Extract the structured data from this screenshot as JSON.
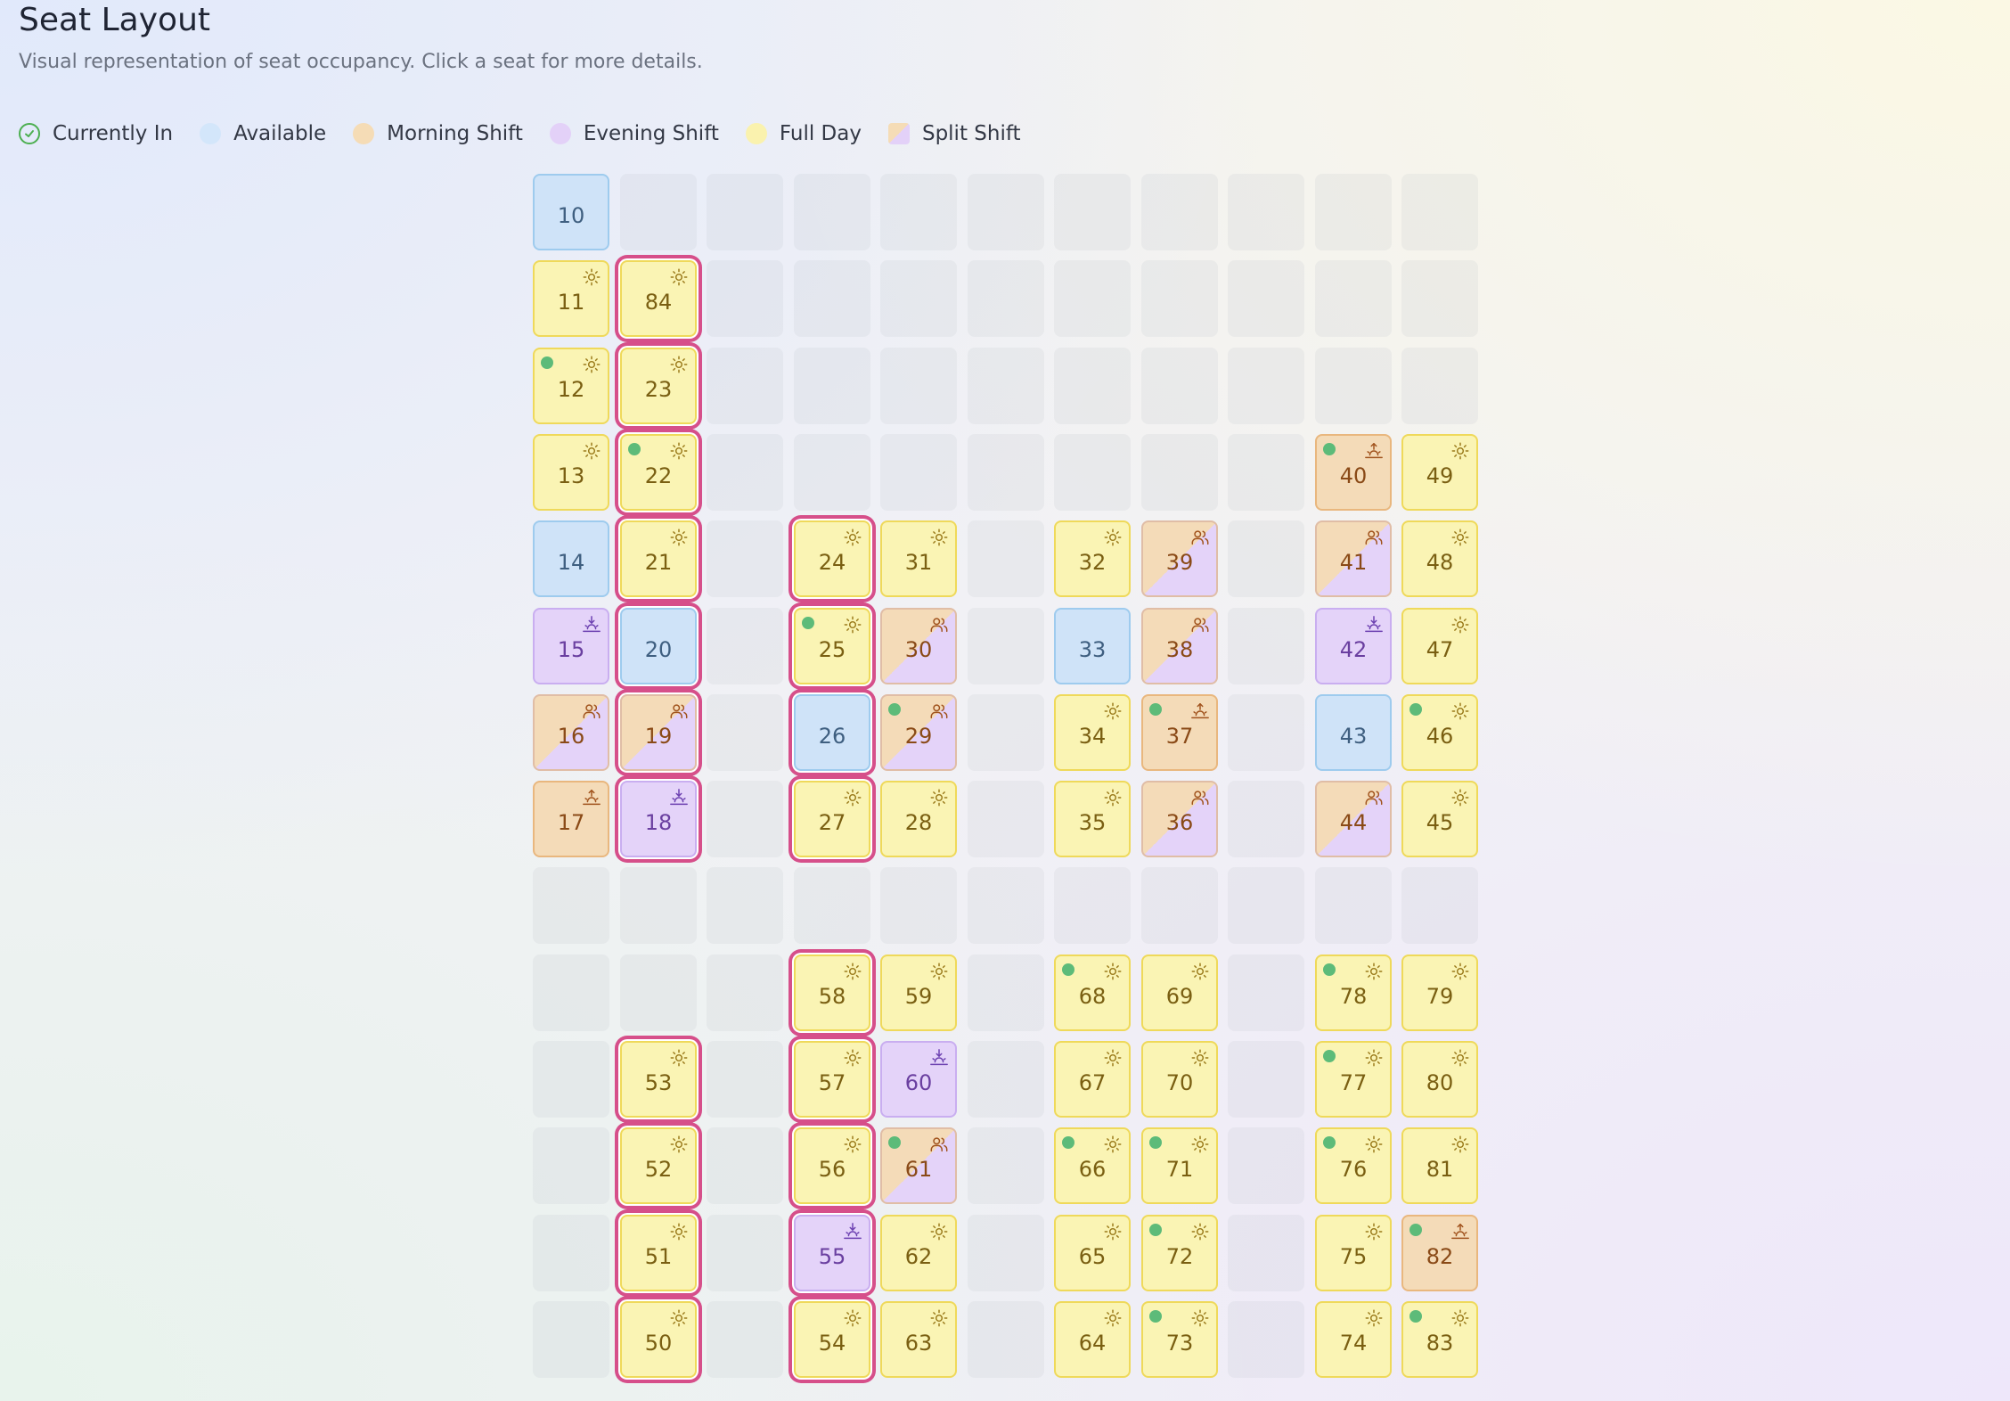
{
  "page": {
    "title": "Seat Layout",
    "subtitle": "Visual representation of seat occupancy. Click a seat for more details."
  },
  "legend": [
    {
      "label": "Currently In",
      "type": "present",
      "icon": "check-circle-icon"
    },
    {
      "label": "Available",
      "type": "available"
    },
    {
      "label": "Morning Shift",
      "type": "morning"
    },
    {
      "label": "Evening Shift",
      "type": "evening"
    },
    {
      "label": "Full Day",
      "type": "fullday"
    },
    {
      "label": "Split Shift",
      "type": "split"
    }
  ],
  "colors": {
    "available": "#cfe3f8",
    "morning": "#f4dbb8",
    "evening": "#e4d3f9",
    "fullday": "#faf4b4",
    "present": "#5dbb79",
    "highlight": "#d64f8a"
  },
  "grid": {
    "columns": 11,
    "rows": 14
  },
  "seats": [
    {
      "number": "10",
      "col": 0,
      "row": 0,
      "type": "available",
      "present": false,
      "highlight": false
    },
    {
      "number": "11",
      "col": 0,
      "row": 1,
      "type": "fullday",
      "present": false,
      "highlight": false
    },
    {
      "number": "84",
      "col": 1,
      "row": 1,
      "type": "fullday",
      "present": false,
      "highlight": true
    },
    {
      "number": "12",
      "col": 0,
      "row": 2,
      "type": "fullday",
      "present": true,
      "highlight": false
    },
    {
      "number": "23",
      "col": 1,
      "row": 2,
      "type": "fullday",
      "present": false,
      "highlight": true
    },
    {
      "number": "13",
      "col": 0,
      "row": 3,
      "type": "fullday",
      "present": false,
      "highlight": false
    },
    {
      "number": "22",
      "col": 1,
      "row": 3,
      "type": "fullday",
      "present": true,
      "highlight": true
    },
    {
      "number": "40",
      "col": 9,
      "row": 3,
      "type": "morning",
      "present": true,
      "highlight": false
    },
    {
      "number": "49",
      "col": 10,
      "row": 3,
      "type": "fullday",
      "present": false,
      "highlight": false
    },
    {
      "number": "14",
      "col": 0,
      "row": 4,
      "type": "available",
      "present": false,
      "highlight": false
    },
    {
      "number": "21",
      "col": 1,
      "row": 4,
      "type": "fullday",
      "present": false,
      "highlight": true
    },
    {
      "number": "24",
      "col": 3,
      "row": 4,
      "type": "fullday",
      "present": false,
      "highlight": true
    },
    {
      "number": "31",
      "col": 4,
      "row": 4,
      "type": "fullday",
      "present": false,
      "highlight": false
    },
    {
      "number": "32",
      "col": 6,
      "row": 4,
      "type": "fullday",
      "present": false,
      "highlight": false
    },
    {
      "number": "39",
      "col": 7,
      "row": 4,
      "type": "split",
      "present": false,
      "highlight": false
    },
    {
      "number": "41",
      "col": 9,
      "row": 4,
      "type": "split",
      "present": false,
      "highlight": false
    },
    {
      "number": "48",
      "col": 10,
      "row": 4,
      "type": "fullday",
      "present": false,
      "highlight": false
    },
    {
      "number": "15",
      "col": 0,
      "row": 5,
      "type": "evening",
      "present": false,
      "highlight": false
    },
    {
      "number": "20",
      "col": 1,
      "row": 5,
      "type": "available",
      "present": false,
      "highlight": true
    },
    {
      "number": "25",
      "col": 3,
      "row": 5,
      "type": "fullday",
      "present": true,
      "highlight": true
    },
    {
      "number": "30",
      "col": 4,
      "row": 5,
      "type": "split",
      "present": false,
      "highlight": false
    },
    {
      "number": "33",
      "col": 6,
      "row": 5,
      "type": "available",
      "present": false,
      "highlight": false
    },
    {
      "number": "38",
      "col": 7,
      "row": 5,
      "type": "split",
      "present": false,
      "highlight": false
    },
    {
      "number": "42",
      "col": 9,
      "row": 5,
      "type": "evening",
      "present": false,
      "highlight": false
    },
    {
      "number": "47",
      "col": 10,
      "row": 5,
      "type": "fullday",
      "present": false,
      "highlight": false
    },
    {
      "number": "16",
      "col": 0,
      "row": 6,
      "type": "split",
      "present": false,
      "highlight": false
    },
    {
      "number": "19",
      "col": 1,
      "row": 6,
      "type": "split",
      "present": false,
      "highlight": true
    },
    {
      "number": "26",
      "col": 3,
      "row": 6,
      "type": "available",
      "present": false,
      "highlight": true
    },
    {
      "number": "29",
      "col": 4,
      "row": 6,
      "type": "split",
      "present": true,
      "highlight": false
    },
    {
      "number": "34",
      "col": 6,
      "row": 6,
      "type": "fullday",
      "present": false,
      "highlight": false
    },
    {
      "number": "37",
      "col": 7,
      "row": 6,
      "type": "morning",
      "present": true,
      "highlight": false
    },
    {
      "number": "43",
      "col": 9,
      "row": 6,
      "type": "available",
      "present": false,
      "highlight": false
    },
    {
      "number": "46",
      "col": 10,
      "row": 6,
      "type": "fullday",
      "present": true,
      "highlight": false
    },
    {
      "number": "17",
      "col": 0,
      "row": 7,
      "type": "morning",
      "present": false,
      "highlight": false
    },
    {
      "number": "18",
      "col": 1,
      "row": 7,
      "type": "evening",
      "present": false,
      "highlight": true
    },
    {
      "number": "27",
      "col": 3,
      "row": 7,
      "type": "fullday",
      "present": false,
      "highlight": true
    },
    {
      "number": "28",
      "col": 4,
      "row": 7,
      "type": "fullday",
      "present": false,
      "highlight": false
    },
    {
      "number": "35",
      "col": 6,
      "row": 7,
      "type": "fullday",
      "present": false,
      "highlight": false
    },
    {
      "number": "36",
      "col": 7,
      "row": 7,
      "type": "split",
      "present": false,
      "highlight": false
    },
    {
      "number": "44",
      "col": 9,
      "row": 7,
      "type": "split",
      "present": false,
      "highlight": false
    },
    {
      "number": "45",
      "col": 10,
      "row": 7,
      "type": "fullday",
      "present": false,
      "highlight": false
    },
    {
      "number": "58",
      "col": 3,
      "row": 9,
      "type": "fullday",
      "present": false,
      "highlight": true
    },
    {
      "number": "59",
      "col": 4,
      "row": 9,
      "type": "fullday",
      "present": false,
      "highlight": false
    },
    {
      "number": "68",
      "col": 6,
      "row": 9,
      "type": "fullday",
      "present": true,
      "highlight": false
    },
    {
      "number": "69",
      "col": 7,
      "row": 9,
      "type": "fullday",
      "present": false,
      "highlight": false
    },
    {
      "number": "78",
      "col": 9,
      "row": 9,
      "type": "fullday",
      "present": true,
      "highlight": false
    },
    {
      "number": "79",
      "col": 10,
      "row": 9,
      "type": "fullday",
      "present": false,
      "highlight": false
    },
    {
      "number": "53",
      "col": 1,
      "row": 10,
      "type": "fullday",
      "present": false,
      "highlight": true
    },
    {
      "number": "57",
      "col": 3,
      "row": 10,
      "type": "fullday",
      "present": false,
      "highlight": true
    },
    {
      "number": "60",
      "col": 4,
      "row": 10,
      "type": "evening",
      "present": false,
      "highlight": false
    },
    {
      "number": "67",
      "col": 6,
      "row": 10,
      "type": "fullday",
      "present": false,
      "highlight": false
    },
    {
      "number": "70",
      "col": 7,
      "row": 10,
      "type": "fullday",
      "present": false,
      "highlight": false
    },
    {
      "number": "77",
      "col": 9,
      "row": 10,
      "type": "fullday",
      "present": true,
      "highlight": false
    },
    {
      "number": "80",
      "col": 10,
      "row": 10,
      "type": "fullday",
      "present": false,
      "highlight": false
    },
    {
      "number": "52",
      "col": 1,
      "row": 11,
      "type": "fullday",
      "present": false,
      "highlight": true
    },
    {
      "number": "56",
      "col": 3,
      "row": 11,
      "type": "fullday",
      "present": false,
      "highlight": true
    },
    {
      "number": "61",
      "col": 4,
      "row": 11,
      "type": "split",
      "present": true,
      "highlight": false
    },
    {
      "number": "66",
      "col": 6,
      "row": 11,
      "type": "fullday",
      "present": true,
      "highlight": false
    },
    {
      "number": "71",
      "col": 7,
      "row": 11,
      "type": "fullday",
      "present": true,
      "highlight": false
    },
    {
      "number": "76",
      "col": 9,
      "row": 11,
      "type": "fullday",
      "present": true,
      "highlight": false
    },
    {
      "number": "81",
      "col": 10,
      "row": 11,
      "type": "fullday",
      "present": false,
      "highlight": false
    },
    {
      "number": "51",
      "col": 1,
      "row": 12,
      "type": "fullday",
      "present": false,
      "highlight": true
    },
    {
      "number": "55",
      "col": 3,
      "row": 12,
      "type": "evening",
      "present": false,
      "highlight": true
    },
    {
      "number": "62",
      "col": 4,
      "row": 12,
      "type": "fullday",
      "present": false,
      "highlight": false
    },
    {
      "number": "65",
      "col": 6,
      "row": 12,
      "type": "fullday",
      "present": false,
      "highlight": false
    },
    {
      "number": "72",
      "col": 7,
      "row": 12,
      "type": "fullday",
      "present": true,
      "highlight": false
    },
    {
      "number": "75",
      "col": 9,
      "row": 12,
      "type": "fullday",
      "present": false,
      "highlight": false
    },
    {
      "number": "82",
      "col": 10,
      "row": 12,
      "type": "morning",
      "present": true,
      "highlight": false
    },
    {
      "number": "50",
      "col": 1,
      "row": 13,
      "type": "fullday",
      "present": false,
      "highlight": true
    },
    {
      "number": "54",
      "col": 3,
      "row": 13,
      "type": "fullday",
      "present": false,
      "highlight": true
    },
    {
      "number": "63",
      "col": 4,
      "row": 13,
      "type": "fullday",
      "present": false,
      "highlight": false
    },
    {
      "number": "64",
      "col": 6,
      "row": 13,
      "type": "fullday",
      "present": false,
      "highlight": false
    },
    {
      "number": "73",
      "col": 7,
      "row": 13,
      "type": "fullday",
      "present": true,
      "highlight": false
    },
    {
      "number": "74",
      "col": 9,
      "row": 13,
      "type": "fullday",
      "present": false,
      "highlight": false
    },
    {
      "number": "83",
      "col": 10,
      "row": 13,
      "type": "fullday",
      "present": true,
      "highlight": false
    }
  ]
}
